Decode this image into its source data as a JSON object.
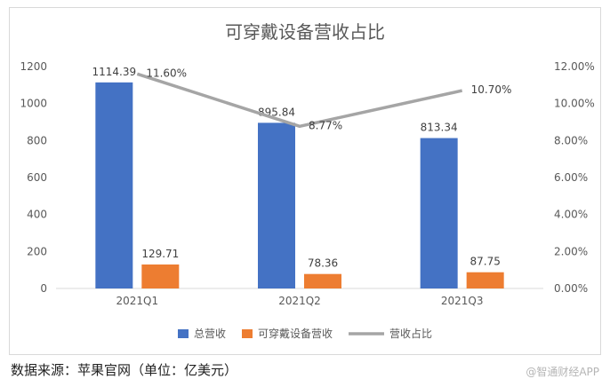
{
  "chart_data": {
    "type": "bar",
    "title": "可穿戴设备营收占比",
    "categories": [
      "2021Q1",
      "2021Q2",
      "2021Q3"
    ],
    "series": [
      {
        "name": "总营收",
        "kind": "bar",
        "axis": "left",
        "color": "#4472C4",
        "values": [
          1114.39,
          895.84,
          813.34
        ],
        "labels": [
          "1114.39",
          "895.84",
          "813.34"
        ]
      },
      {
        "name": "可穿戴设备营收",
        "kind": "bar",
        "axis": "left",
        "color": "#ED7D31",
        "values": [
          129.71,
          78.36,
          87.75
        ],
        "labels": [
          "129.71",
          "78.36",
          "87.75"
        ]
      },
      {
        "name": "营收占比",
        "kind": "line",
        "axis": "right",
        "color": "#A5A5A5",
        "values": [
          11.6,
          8.77,
          10.7
        ],
        "labels": [
          "11.60%",
          "8.77%",
          "10.70%"
        ]
      }
    ],
    "ylim": [
      0,
      1200
    ],
    "yticks": [
      "0",
      "200",
      "400",
      "600",
      "800",
      "1000",
      "1200"
    ],
    "y2lim": [
      0,
      12
    ],
    "y2ticks": [
      "0.00%",
      "2.00%",
      "4.00%",
      "6.00%",
      "8.00%",
      "10.00%",
      "12.00%"
    ],
    "legend": "bottom",
    "grid": false
  },
  "footer": {
    "source": "数据来源：苹果官网（单位：亿美元）",
    "watermark": "@智通财经APP"
  }
}
